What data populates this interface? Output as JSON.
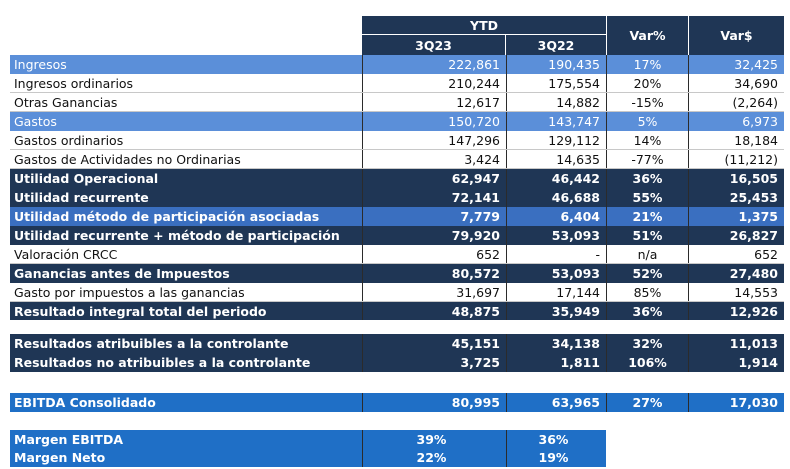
{
  "header": {
    "ytd": "YTD",
    "col1": "3Q23",
    "col2": "3Q22",
    "col3": "Var%",
    "col4": "Var$"
  },
  "rows": [
    {
      "label": "Ingresos",
      "v1": "222,861",
      "v2": "190,435",
      "v3": "17%",
      "v4": "32,425"
    },
    {
      "label": "Ingresos ordinarios",
      "v1": "210,244",
      "v2": "175,554",
      "v3": "20%",
      "v4": "34,690"
    },
    {
      "label": "Otras Ganancias",
      "v1": "12,617",
      "v2": "14,882",
      "v3": "-15%",
      "v4": "(2,264)"
    },
    {
      "label": "Gastos",
      "v1": "150,720",
      "v2": "143,747",
      "v3": "5%",
      "v4": "6,973"
    },
    {
      "label": "Gastos ordinarios",
      "v1": "147,296",
      "v2": "129,112",
      "v3": "14%",
      "v4": "18,184"
    },
    {
      "label": "Gastos de Actividades no Ordinarias",
      "v1": "3,424",
      "v2": "14,635",
      "v3": "-77%",
      "v4": "(11,212)"
    },
    {
      "label": "Utilidad Operacional",
      "v1": "62,947",
      "v2": "46,442",
      "v3": "36%",
      "v4": "16,505"
    },
    {
      "label": "Utilidad recurrente",
      "v1": "72,141",
      "v2": "46,688",
      "v3": "55%",
      "v4": "25,453"
    },
    {
      "label": "Utilidad método de participación asociadas",
      "v1": "7,779",
      "v2": "6,404",
      "v3": "21%",
      "v4": "1,375"
    },
    {
      "label": "Utilidad recurrente + método de participación",
      "v1": "79,920",
      "v2": "53,093",
      "v3": "51%",
      "v4": "26,827"
    },
    {
      "label": "Valoración CRCC",
      "v1": "652",
      "v2": "-",
      "v3": "n/a",
      "v4": "652"
    },
    {
      "label": "Ganancias antes de Impuestos",
      "v1": "80,572",
      "v2": "53,093",
      "v3": "52%",
      "v4": "27,480"
    },
    {
      "label": "Gasto por impuestos a las ganancias",
      "v1": "31,697",
      "v2": "17,144",
      "v3": "85%",
      "v4": "14,553"
    },
    {
      "label": "Resultado integral total del periodo",
      "v1": "48,875",
      "v2": "35,949",
      "v3": "36%",
      "v4": "12,926"
    }
  ],
  "attributable": [
    {
      "label": "Resultados atribuibles a la controlante",
      "v1": "45,151",
      "v2": "34,138",
      "v3": "32%",
      "v4": "11,013"
    },
    {
      "label": "Resultados no atribuibles a la controlante",
      "v1": "3,725",
      "v2": "1,811",
      "v3": "106%",
      "v4": "1,914"
    }
  ],
  "ebitda": {
    "label": "EBITDA Consolidado",
    "v1": "80,995",
    "v2": "63,965",
    "v3": "27%",
    "v4": "17,030"
  },
  "margins": [
    {
      "label": "Margen EBITDA",
      "v1": "39%",
      "v2": "36%"
    },
    {
      "label": "Margen Neto",
      "v1": "22%",
      "v2": "19%"
    }
  ]
}
